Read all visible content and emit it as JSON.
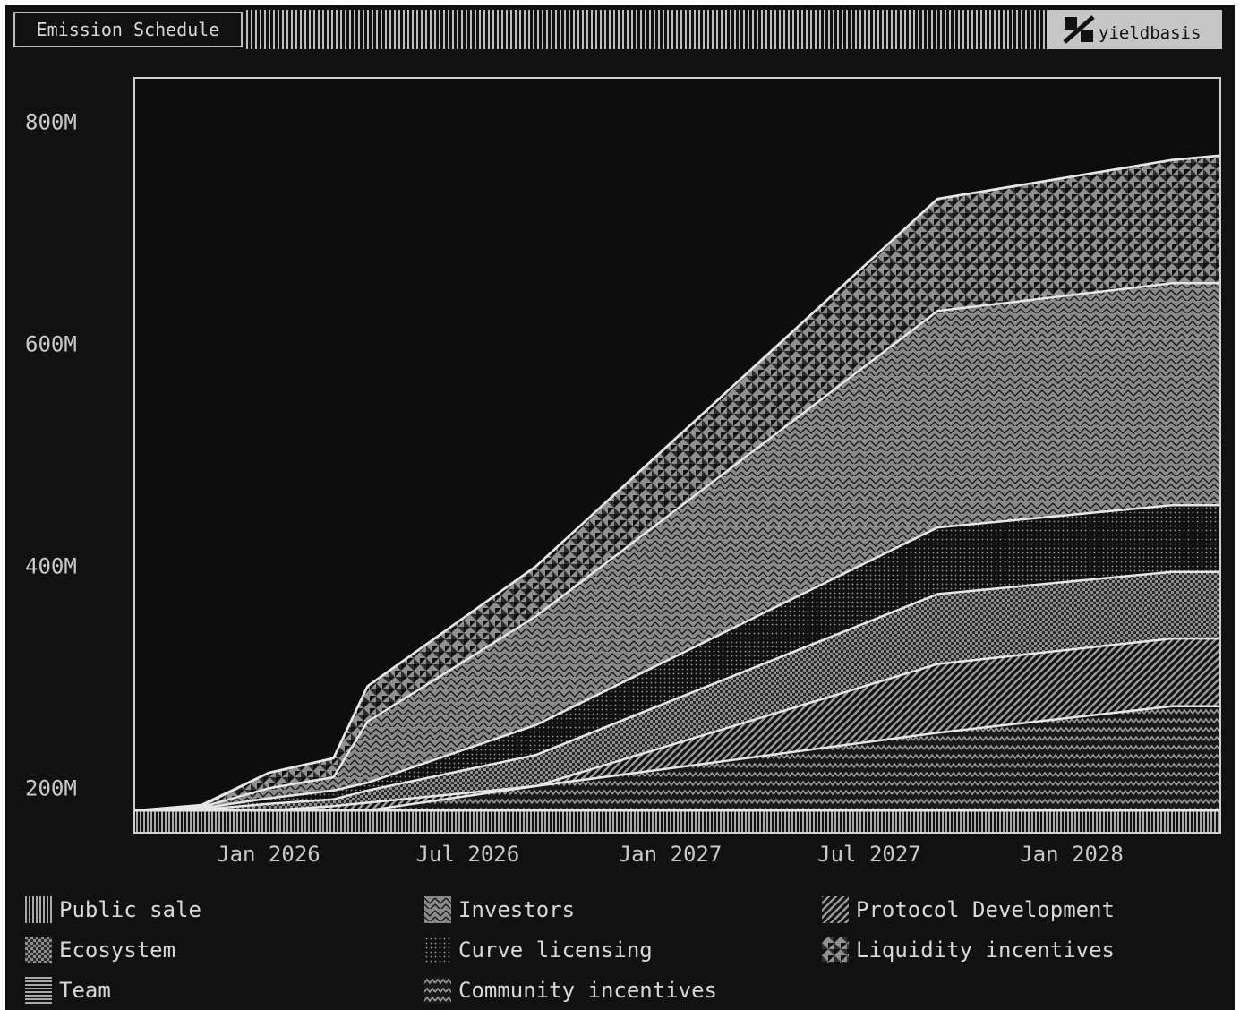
{
  "header": {
    "title": "Emission Schedule",
    "brand": "yieldbasis",
    "brand_icon": "yieldbasis-logo-icon"
  },
  "colors": {
    "background": "#111111",
    "pattern_fill": "#8f8f8f",
    "outline": "#e6e6e6",
    "text": "#d8d8d8"
  },
  "chart_data": {
    "type": "area",
    "stacked": true,
    "x_axis": "date",
    "xlim": [
      "2025-09-01",
      "2028-05-15"
    ],
    "ylim": [
      160,
      840
    ],
    "y_unit": "M",
    "x_ticks": [
      {
        "date": "2026-01-01",
        "label": "Jan 2026"
      },
      {
        "date": "2026-07-01",
        "label": "Jul 2026"
      },
      {
        "date": "2027-01-01",
        "label": "Jan 2027"
      },
      {
        "date": "2027-07-01",
        "label": "Jul 2027"
      },
      {
        "date": "2028-01-01",
        "label": "Jan 2028"
      }
    ],
    "y_ticks": [
      {
        "value": 200,
        "label": "200M"
      },
      {
        "value": 400,
        "label": "400M"
      },
      {
        "value": 600,
        "label": "600M"
      },
      {
        "value": 800,
        "label": "800M"
      }
    ],
    "x": [
      "2025-09-01",
      "2025-11-01",
      "2026-01-01",
      "2026-03-01",
      "2026-04-01",
      "2026-09-01",
      "2027-09-01",
      "2028-04-01",
      "2028-05-15"
    ],
    "cumulative_top": [
      {
        "name": "Public sale",
        "pattern": "vlines",
        "values": [
          180,
          180,
          180,
          180,
          180,
          180,
          180,
          180,
          180
        ]
      },
      {
        "name": "Community incentives",
        "pattern": "zigzag",
        "values": [
          180,
          180,
          180,
          180,
          180,
          202,
          250,
          274,
          274
        ]
      },
      {
        "name": "Protocol Development",
        "pattern": "diag",
        "values": [
          180,
          180,
          180,
          184,
          187,
          202,
          312,
          335,
          335
        ]
      },
      {
        "name": "Ecosystem",
        "pattern": "checker",
        "values": [
          180,
          181,
          186,
          190,
          198,
          230,
          375,
          395,
          395
        ]
      },
      {
        "name": "Curve licensing",
        "pattern": "dots",
        "values": [
          180,
          182,
          191,
          198,
          205,
          257,
          435,
          455,
          455
        ]
      },
      {
        "name": "Investors",
        "pattern": "chevron",
        "values": [
          180,
          183,
          200,
          210,
          260,
          355,
          630,
          655,
          655
        ]
      },
      {
        "name": "Liquidity incentives",
        "pattern": "triangles",
        "values": [
          180,
          184,
          214,
          227,
          292,
          400,
          731,
          766,
          770
        ]
      },
      {
        "name": "Team",
        "pattern": "hlines",
        "values": [
          180,
          185,
          214,
          227,
          292,
          400,
          731,
          766,
          770
        ]
      }
    ]
  },
  "legend": [
    {
      "label": "Public sale",
      "icon": "vlines-pattern-icon"
    },
    {
      "label": "Investors",
      "icon": "chevron-pattern-icon"
    },
    {
      "label": "Protocol Development",
      "icon": "diagonal-pattern-icon"
    },
    {
      "label": "Ecosystem",
      "icon": "checker-pattern-icon"
    },
    {
      "label": "Curve licensing",
      "icon": "dots-pattern-icon"
    },
    {
      "label": "Liquidity incentives",
      "icon": "triangles-pattern-icon"
    },
    {
      "label": "Team",
      "icon": "hlines-pattern-icon"
    },
    {
      "label": "Community incentives",
      "icon": "zigzag-pattern-icon"
    }
  ]
}
